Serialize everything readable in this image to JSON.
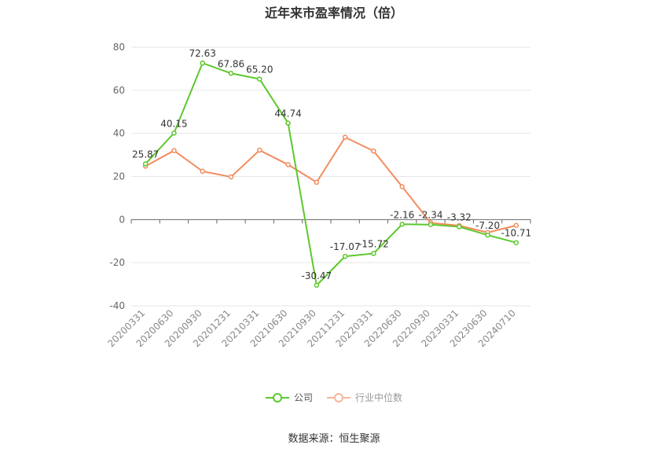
{
  "chart_data": {
    "type": "line",
    "title": "近年来市盈率情况（倍）",
    "categories": [
      "20200331",
      "20200630",
      "20200930",
      "20201231",
      "20210331",
      "20210630",
      "20210930",
      "20211231",
      "20220331",
      "20220630",
      "20220930",
      "20230331",
      "20230630",
      "20240710"
    ],
    "series": [
      {
        "name": "公司",
        "color": "#5cc82c",
        "values": [
          25.87,
          40.15,
          72.63,
          67.86,
          65.2,
          44.74,
          -30.47,
          -17.07,
          -15.72,
          -2.16,
          -2.34,
          -3.32,
          -7.2,
          -10.71
        ],
        "labels": [
          "25.87",
          "40.15",
          "72.63",
          "67.86",
          "65.20",
          "44.74",
          "-30.47",
          "-17.07",
          "-15.72",
          "-2.16",
          "-2.34",
          "-3.32",
          "-7.20",
          "-10.71"
        ]
      },
      {
        "name": "行业中位数",
        "color": "#f28c5e",
        "values": [
          24.8,
          32.0,
          22.4,
          19.8,
          32.2,
          25.5,
          17.3,
          38.2,
          31.8,
          15.3,
          -1.5,
          -2.8,
          -6.0,
          -2.7
        ]
      }
    ],
    "ylim": [
      -40,
      80
    ],
    "yticks": [
      "-40",
      "-20",
      "0",
      "20",
      "40",
      "60",
      "80"
    ],
    "grid": true,
    "legend": "bottom"
  },
  "source": "数据来源：恒生聚源"
}
